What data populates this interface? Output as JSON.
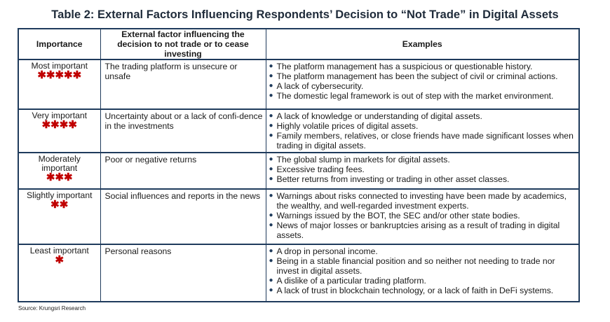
{
  "title": "Table 2: External Factors Influencing Respondents’ Decision to “Not Trade” in Digital Assets",
  "headers": {
    "importance": "Importance",
    "factor": "External factor influencing the decision to not trade or to cease investing",
    "examples": "Examples"
  },
  "rows": [
    {
      "importance": "Most important",
      "stars": "✱✱✱✱✱",
      "factor": "The trading platform is unsecure or unsafe",
      "examples": [
        "The platform management has a suspicious or questionable history.",
        "The platform management has been the subject of civil or criminal actions.",
        "A lack of cybersecurity.",
        "The domestic legal framework is out of step with the market environment."
      ]
    },
    {
      "importance": "Very important",
      "stars": "✱✱✱✱",
      "factor": "Uncertainty about or a lack of confi-dence in the investments",
      "examples": [
        "A lack of knowledge or understanding of digital assets.",
        "Highly volatile prices of digital assets.",
        "Family members, relatives, or close friends have made significant losses when trading in digital assets."
      ]
    },
    {
      "importance": "Moderately important",
      "stars": "✱✱✱",
      "factor": "Poor or negative returns",
      "examples": [
        "The global slump in markets for digital assets.",
        "Excessive trading fees.",
        "Better returns from investing or trading in other asset classes."
      ]
    },
    {
      "importance": "Slightly important",
      "stars": "✱✱",
      "factor": "Social influences and reports in the news",
      "examples": [
        "Warnings about risks connected to investing have been made by academics, the wealthy, and well-regarded investment experts.",
        "Warnings issued by the BOT, the SEC and/or other state bodies.",
        "News of major losses or bankruptcies arising as a result of trading in digital assets."
      ]
    },
    {
      "importance": "Least important",
      "stars": "✱",
      "factor": "Personal reasons",
      "examples": [
        "A drop in personal income.",
        "Being in a stable financial position and so neither not needing to trade nor invest in digital assets.",
        "A dislike of a particular trading platform.",
        "A lack of trust in blockchain technology, or a lack of faith in DeFi systems."
      ]
    }
  ],
  "bullet": "●",
  "source": "Source: Krungsri Research",
  "colors": {
    "star": "#c00000",
    "border": "#1f3b5c"
  }
}
